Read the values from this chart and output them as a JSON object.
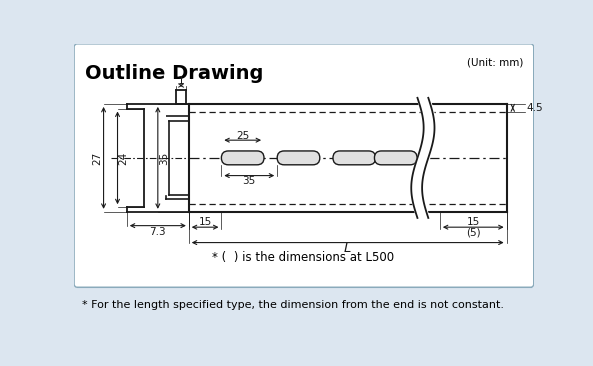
{
  "title": "Outline Drawing",
  "unit_text": "(Unit: mm)",
  "footer_note1": "* (  ) is the dimensions at L500",
  "footer_note2": "* For the length specified type, the dimension from the end is not constant.",
  "bg_color": "#dce6f0",
  "panel_color": "#ffffff",
  "line_color": "#1a1a1a",
  "title_fontsize": 14,
  "dim_fontsize": 7.5,
  "note_fontsize": 8.5,
  "foot_fontsize": 8.0
}
